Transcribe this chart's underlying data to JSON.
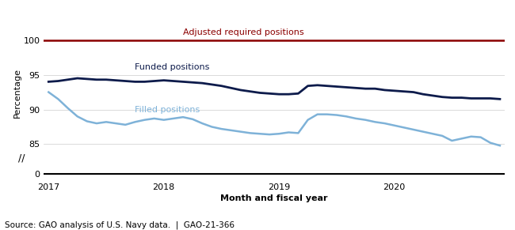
{
  "ylabel": "Percentage",
  "xlabel": "Month and fiscal year",
  "source": "Source: GAO analysis of U.S. Navy data.  |  GAO-21-366",
  "required_label": "Adjusted required positions",
  "funded_label": "Funded positions",
  "filled_label": "Filled positions",
  "required_color": "#8B0000",
  "funded_color": "#0D1B4B",
  "filled_color": "#7EB2D8",
  "background_color": "#FFFFFF",
  "funded_data": [
    94.0,
    94.1,
    94.3,
    94.5,
    94.4,
    94.3,
    94.3,
    94.2,
    94.1,
    94.0,
    94.0,
    94.1,
    94.2,
    94.1,
    94.0,
    93.9,
    93.8,
    93.6,
    93.4,
    93.1,
    92.8,
    92.6,
    92.4,
    92.3,
    92.2,
    92.2,
    92.3,
    93.4,
    93.5,
    93.4,
    93.3,
    93.2,
    93.1,
    93.0,
    93.0,
    92.8,
    92.7,
    92.6,
    92.5,
    92.2,
    92.0,
    91.8,
    91.7,
    91.7,
    91.6,
    91.6,
    91.6,
    91.5
  ],
  "filled_data": [
    92.5,
    91.5,
    90.2,
    89.0,
    88.3,
    88.0,
    88.2,
    88.0,
    87.8,
    88.2,
    88.5,
    88.7,
    88.5,
    88.7,
    88.9,
    88.6,
    88.0,
    87.5,
    87.2,
    87.0,
    86.8,
    86.6,
    86.5,
    86.4,
    86.5,
    86.7,
    86.6,
    88.5,
    89.3,
    89.3,
    89.2,
    89.0,
    88.7,
    88.5,
    88.2,
    88.0,
    87.7,
    87.4,
    87.1,
    86.8,
    86.5,
    86.2,
    85.5,
    85.8,
    86.1,
    86.0,
    85.2,
    84.8
  ]
}
